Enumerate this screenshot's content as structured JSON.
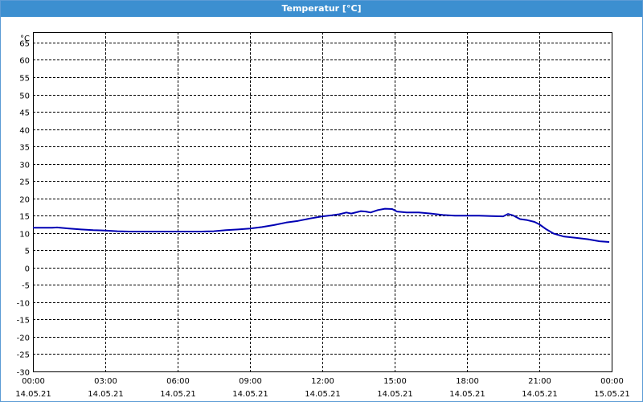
{
  "window": {
    "title": "Temperatur [°C]"
  },
  "chart_data": {
    "type": "line",
    "title": "Temperatur [°C]",
    "ylabel": "°C",
    "xlabel": "",
    "ylim": [
      -30,
      68
    ],
    "yticks": [
      65,
      60,
      55,
      50,
      45,
      40,
      35,
      30,
      25,
      20,
      15,
      10,
      5,
      0,
      -5,
      -10,
      -15,
      -20,
      -25,
      -30
    ],
    "xlim": [
      0,
      24
    ],
    "xticks": [
      {
        "x": 0,
        "time": "00:00",
        "date": "14.05.21"
      },
      {
        "x": 3,
        "time": "03:00",
        "date": "14.05.21"
      },
      {
        "x": 6,
        "time": "06:00",
        "date": "14.05.21"
      },
      {
        "x": 9,
        "time": "09:00",
        "date": "14.05.21"
      },
      {
        "x": 12,
        "time": "12:00",
        "date": "14.05.21"
      },
      {
        "x": 15,
        "time": "15:00",
        "date": "14.05.21"
      },
      {
        "x": 18,
        "time": "18:00",
        "date": "14.05.21"
      },
      {
        "x": 21,
        "time": "21:00",
        "date": "14.05.21"
      },
      {
        "x": 24,
        "time": "00:00",
        "date": "15.05.21"
      }
    ],
    "grid": true,
    "series": [
      {
        "color": "#0000b4",
        "x": [
          0,
          0.8,
          1.0,
          1.5,
          2.0,
          2.5,
          3.0,
          3.5,
          4.0,
          5.0,
          6.0,
          7.0,
          7.5,
          8.0,
          8.5,
          9.0,
          9.5,
          10.0,
          10.5,
          11.0,
          11.5,
          12.0,
          12.4,
          12.7,
          13.0,
          13.2,
          13.6,
          13.8,
          14.0,
          14.3,
          14.6,
          14.9,
          15.1,
          15.5,
          16.0,
          16.5,
          17.0,
          17.5,
          18.0,
          18.5,
          19.0,
          19.5,
          19.7,
          19.9,
          20.2,
          20.5,
          20.8,
          21.0,
          21.3,
          21.6,
          22.0,
          22.5,
          23.0,
          23.5,
          23.9
        ],
        "y": [
          11.5,
          11.5,
          11.6,
          11.3,
          11.0,
          10.8,
          10.7,
          10.5,
          10.4,
          10.4,
          10.4,
          10.4,
          10.5,
          10.8,
          11.0,
          11.3,
          11.7,
          12.3,
          13.0,
          13.5,
          14.2,
          14.8,
          15.1,
          15.4,
          15.9,
          15.6,
          16.3,
          16.2,
          15.9,
          16.6,
          17.0,
          16.9,
          16.2,
          15.9,
          15.9,
          15.6,
          15.2,
          15.0,
          15.0,
          15.0,
          14.9,
          14.8,
          15.5,
          15.1,
          14.0,
          13.7,
          13.2,
          12.5,
          11.0,
          9.8,
          9.0,
          8.6,
          8.2,
          7.6,
          7.4
        ]
      }
    ]
  }
}
